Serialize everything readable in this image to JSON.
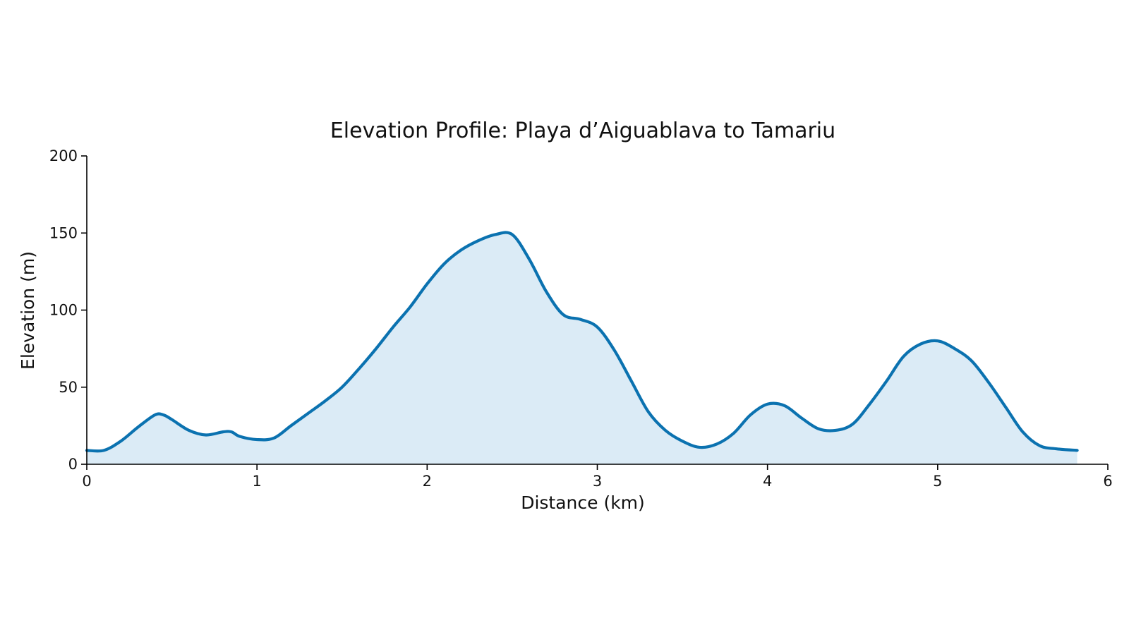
{
  "chart_data": {
    "type": "area",
    "title": "Elevation Profile: Playa d’Aiguablava to Tamariu",
    "xlabel": "Distance (km)",
    "ylabel": "Elevation (m)",
    "xlim": [
      0,
      6
    ],
    "ylim": [
      0,
      200
    ],
    "xticks": [
      0,
      1,
      2,
      3,
      4,
      5,
      6
    ],
    "xtick_labels": [
      "0",
      "1",
      "2",
      "3",
      "4",
      "5",
      "6"
    ],
    "yticks": [
      0,
      50,
      100,
      150,
      200
    ],
    "ytick_labels": [
      "0",
      "50",
      "100",
      "150",
      "200"
    ],
    "grid": false,
    "colors": {
      "line": "#0b72b0",
      "fill": "#dbebf6"
    },
    "series": [
      {
        "x": [
          0.0,
          0.1,
          0.2,
          0.3,
          0.4,
          0.45,
          0.5,
          0.6,
          0.7,
          0.8,
          0.85,
          0.9,
          1.0,
          1.1,
          1.2,
          1.3,
          1.4,
          1.5,
          1.6,
          1.7,
          1.8,
          1.9,
          2.0,
          2.1,
          2.2,
          2.3,
          2.4,
          2.5,
          2.6,
          2.7,
          2.8,
          2.9,
          3.0,
          3.1,
          3.2,
          3.3,
          3.4,
          3.5,
          3.6,
          3.7,
          3.8,
          3.9,
          4.0,
          4.1,
          4.2,
          4.3,
          4.4,
          4.5,
          4.6,
          4.7,
          4.8,
          4.9,
          5.0,
          5.1,
          5.2,
          5.3,
          5.4,
          5.5,
          5.6,
          5.7,
          5.82
        ],
        "values": [
          9,
          9,
          15,
          24,
          32,
          32,
          29,
          22,
          19,
          21,
          21,
          18,
          16,
          17,
          25,
          33,
          41,
          50,
          62,
          75,
          89,
          102,
          117,
          130,
          139,
          145,
          149,
          149,
          133,
          112,
          97,
          94,
          89,
          74,
          54,
          34,
          22,
          15,
          11,
          13,
          20,
          32,
          39,
          38,
          30,
          23,
          22,
          26,
          39,
          54,
          70,
          78,
          80,
          75,
          67,
          53,
          37,
          21,
          12,
          10,
          9
        ]
      }
    ]
  }
}
